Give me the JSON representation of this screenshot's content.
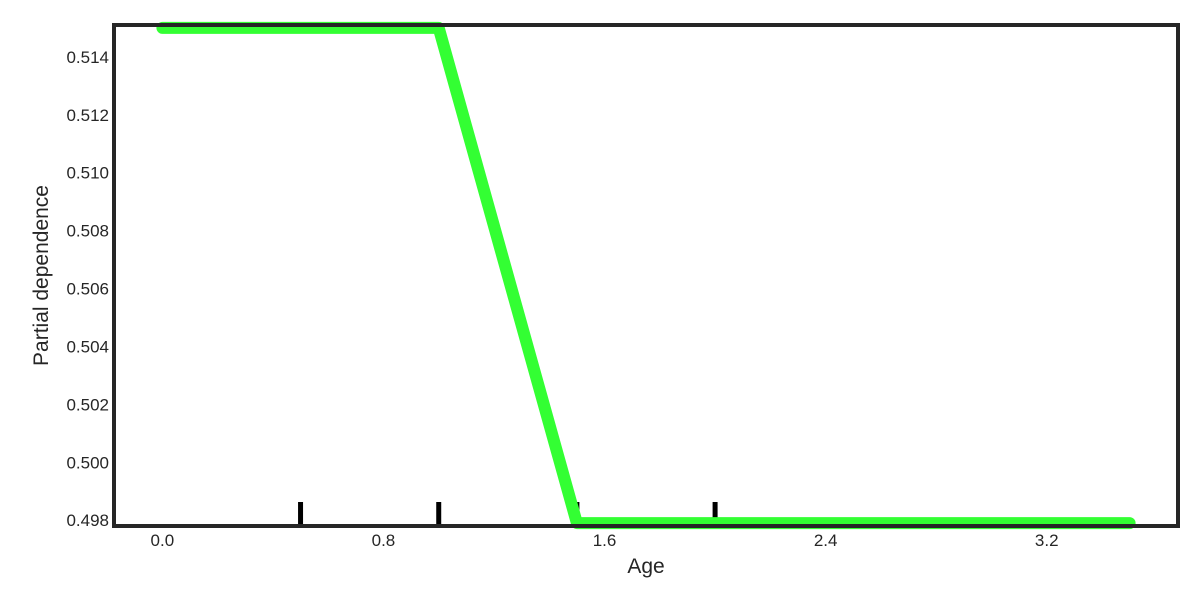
{
  "chart_data": {
    "type": "line",
    "title": "",
    "xlabel": "Age",
    "ylabel": "Partial dependence",
    "x_ticks": [
      0.0,
      0.8,
      1.6,
      2.4,
      3.2
    ],
    "x_tick_labels": [
      "0.0",
      "0.8",
      "1.6",
      "2.4",
      "3.2"
    ],
    "y_ticks": [
      0.498,
      0.5,
      0.502,
      0.504,
      0.506,
      0.508,
      0.51,
      0.512,
      0.514
    ],
    "y_tick_labels": [
      "0.498",
      "0.500",
      "0.502",
      "0.504",
      "0.506",
      "0.508",
      "0.510",
      "0.512",
      "0.514"
    ],
    "xlim": [
      -0.175,
      3.675
    ],
    "ylim": [
      0.4978,
      0.5151
    ],
    "grid": false,
    "series": [
      {
        "x": [
          0.0,
          1.0,
          1.5,
          3.5
        ],
        "y": [
          0.515,
          0.515,
          0.4979,
          0.4979
        ],
        "color": "#33ff33"
      }
    ],
    "rug_ticks": {
      "x": [
        0.5,
        1.0,
        1.5,
        2.0
      ],
      "color": "#000000"
    },
    "frame_color": "#262626"
  }
}
